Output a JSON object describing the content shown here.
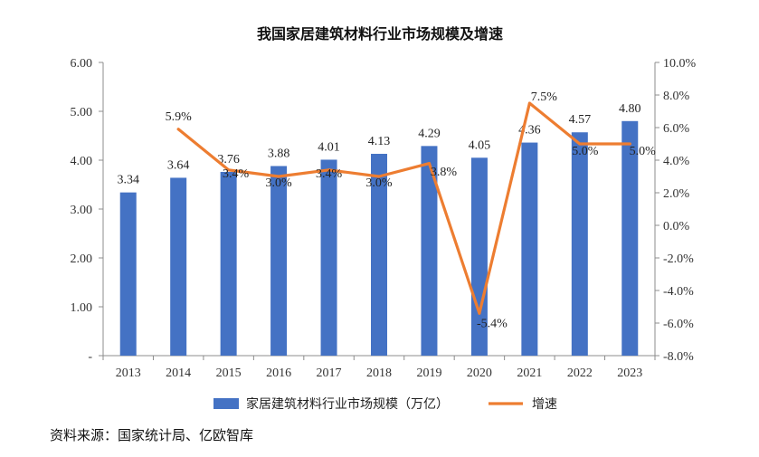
{
  "chart_data": {
    "type": "bar",
    "title": "我国家居建筑材料行业市场规模及增速",
    "categories": [
      "2013",
      "2014",
      "2015",
      "2016",
      "2017",
      "2018",
      "2019",
      "2020",
      "2021",
      "2022",
      "2023"
    ],
    "series": [
      {
        "name": "家居建筑材料行业市场规模（万亿）",
        "type": "bar",
        "axis": "left",
        "color": "#4472C4",
        "values": [
          3.34,
          3.64,
          3.76,
          3.88,
          4.01,
          4.13,
          4.29,
          4.05,
          4.36,
          4.57,
          4.8
        ],
        "labels": [
          "3.34",
          "3.64",
          "3.76",
          "3.88",
          "4.01",
          "4.13",
          "4.29",
          "4.05",
          "4.36",
          "4.57",
          "4.80"
        ]
      },
      {
        "name": "增速",
        "type": "line",
        "axis": "right",
        "color": "#ED7D31",
        "values": [
          null,
          5.9,
          3.4,
          3.0,
          3.4,
          3.0,
          3.8,
          -5.4,
          7.5,
          5.0,
          5.0
        ],
        "labels": [
          "",
          "5.9%",
          "3.4%",
          "3.0%",
          "3.4%",
          "3.0%",
          "3.8%",
          "-5.4%",
          "7.5%",
          "5.0%",
          "5.0%"
        ]
      }
    ],
    "left_axis": {
      "ylim": [
        0,
        6
      ],
      "ticks": [
        0,
        1,
        2,
        3,
        4,
        5,
        6
      ],
      "tick_labels": [
        "-",
        "1.00",
        "2.00",
        "3.00",
        "4.00",
        "5.00",
        "6.00"
      ]
    },
    "right_axis": {
      "ylim": [
        -8,
        10
      ],
      "ticks": [
        -8,
        -6,
        -4,
        -2,
        0,
        2,
        4,
        6,
        8,
        10
      ],
      "tick_labels": [
        "-8.0%",
        "-6.0%",
        "-4.0%",
        "-2.0%",
        "0.0%",
        "2.0%",
        "4.0%",
        "6.0%",
        "8.0%",
        "10.0%"
      ]
    },
    "grid": false,
    "legend_position": "bottom"
  },
  "source_text": "资料来源：国家统计局、亿欧智库"
}
